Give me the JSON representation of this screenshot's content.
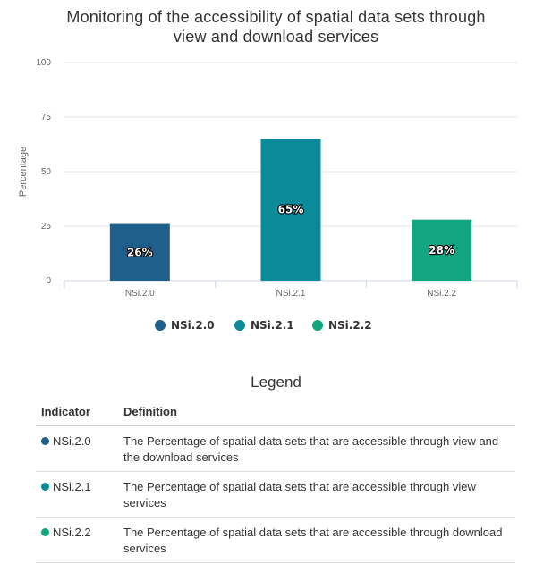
{
  "chart_data": {
    "type": "bar",
    "title_lines": [
      "Monitoring of the accessibility of spatial data sets through",
      "view and download services"
    ],
    "ylabel": "Percentage",
    "ylim": [
      0,
      100
    ],
    "yticks": [
      "0",
      "25",
      "50",
      "75",
      "100"
    ],
    "categories": [
      "NSi.2.0",
      "NSi.2.1",
      "NSi.2.2"
    ],
    "values": [
      26,
      65,
      28
    ],
    "data_labels": [
      "26%",
      "65%",
      "28%"
    ],
    "colors": [
      "#1f5f8b",
      "#0b8a9a",
      "#12a57f"
    ],
    "grid": true,
    "legend": {
      "position": "bottom-center",
      "items": [
        "NSi.2.0",
        "NSi.2.1",
        "NSi.2.2"
      ]
    }
  },
  "legend_table": {
    "title": "Legend",
    "headers": [
      "Indicator",
      "Definition"
    ],
    "rows": [
      {
        "indicator": "NSi.2.0",
        "color": "#1f5f8b",
        "definition": "The Percentage of spatial data sets that are accessible through view and the download services"
      },
      {
        "indicator": "NSi.2.1",
        "color": "#0b8a9a",
        "definition": "The Percentage of spatial data sets that are accessible through view services"
      },
      {
        "indicator": "NSi.2.2",
        "color": "#12a57f",
        "definition": "The Percentage of spatial data sets that are accessible through download services"
      }
    ]
  }
}
